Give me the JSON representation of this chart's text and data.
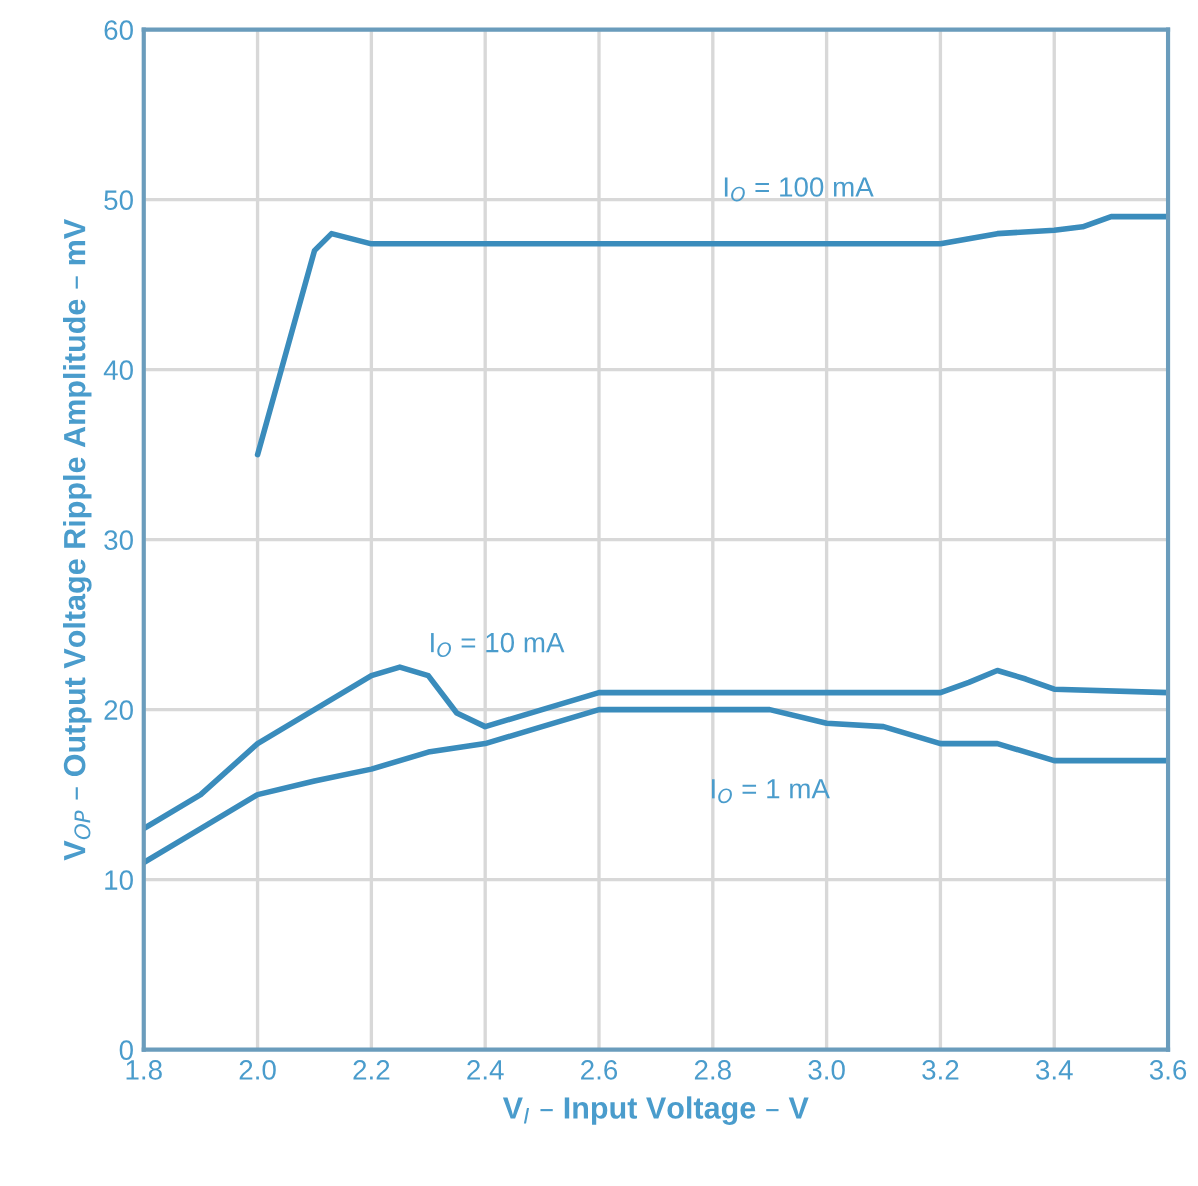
{
  "chart_data": {
    "type": "line",
    "xlabel": "V$_{I}$ – Input Voltage – V",
    "ylabel": "V$_{OP}$ – Output Voltage Ripple Amplitude – mV",
    "series": [
      {
        "name": "I$_{O}$ = 100 mA",
        "color": "#3a8cbc",
        "x": [
          2.0,
          2.05,
          2.1,
          2.13,
          2.2,
          2.4,
          2.6,
          2.8,
          3.0,
          3.2,
          3.3,
          3.4,
          3.45,
          3.5,
          3.6
        ],
        "values": [
          35,
          41,
          47,
          48,
          47.4,
          47.4,
          47.4,
          47.4,
          47.4,
          47.4,
          48,
          48.2,
          48.4,
          49,
          49
        ]
      },
      {
        "name": "I$_{O}$ = 10 mA",
        "color": "#3a8cbc",
        "x": [
          1.8,
          1.9,
          2.0,
          2.1,
          2.2,
          2.25,
          2.3,
          2.35,
          2.4,
          2.5,
          2.6,
          2.8,
          3.0,
          3.2,
          3.25,
          3.3,
          3.35,
          3.4,
          3.6
        ],
        "values": [
          13,
          15,
          18,
          20,
          22,
          22.5,
          22,
          19.8,
          19,
          20,
          21,
          21,
          21,
          21,
          21.6,
          22.3,
          21.8,
          21.2,
          21
        ]
      },
      {
        "name": "I$_{O}$ = 1 mA",
        "color": "#3a8cbc",
        "x": [
          1.8,
          1.9,
          2.0,
          2.1,
          2.2,
          2.3,
          2.4,
          2.5,
          2.6,
          2.8,
          2.9,
          3.0,
          3.1,
          3.2,
          3.3,
          3.4,
          3.6
        ],
        "values": [
          11,
          13,
          15,
          15.8,
          16.5,
          17.5,
          18,
          19,
          20,
          20,
          20,
          19.2,
          19,
          18,
          18,
          17,
          17
        ]
      }
    ],
    "xlim": [
      1.8,
      3.6
    ],
    "xticks": [
      1.8,
      {
        "value": 2,
        "label": "2.0"
      },
      2.2,
      2.4,
      2.6,
      2.8,
      {
        "value": 3,
        "label": "3.0"
      },
      3.2,
      3.4,
      3.6
    ],
    "ylim": [
      0,
      60
    ],
    "yticks": [
      0,
      10,
      20,
      30,
      40,
      50,
      60
    ],
    "grid": true,
    "marker": "none",
    "line_style": "solid"
  }
}
